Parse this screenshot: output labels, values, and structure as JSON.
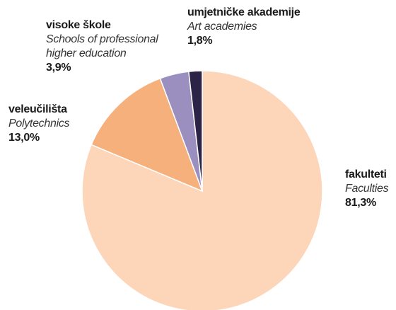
{
  "chart_data": {
    "type": "pie",
    "categories": [
      "fakulteti",
      "veleučilišta",
      "visoke škole",
      "umjetničke akademije"
    ],
    "translations": [
      "Faculties",
      "Polytechnics",
      "Schools of professional higher education",
      "Art academies"
    ],
    "values": [
      81.3,
      13.0,
      3.9,
      1.8
    ],
    "value_labels": [
      "81,3%",
      "13,0%",
      "3,9%",
      "1,8%"
    ],
    "colors": [
      "#fdd5b8",
      "#f5b07c",
      "#9b8fc0",
      "#2b2447"
    ]
  }
}
